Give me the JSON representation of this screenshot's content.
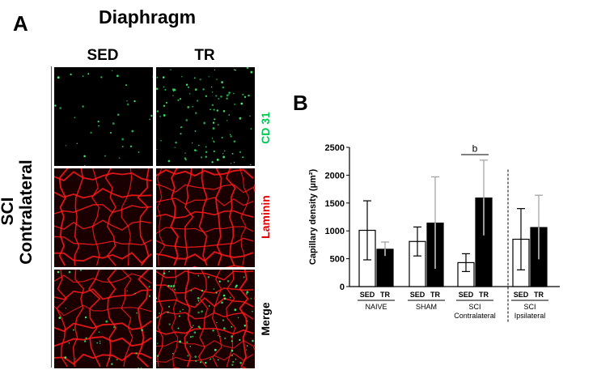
{
  "panel_a": {
    "letter": "A",
    "title": "Diaphragm",
    "columns": [
      "SED",
      "TR"
    ],
    "group_label_line1": "SCI",
    "group_label_line2": "Contralateral",
    "rows": [
      {
        "label": "CD 31",
        "color": "#00c853"
      },
      {
        "label": "Laminin",
        "color": "#e00000"
      },
      {
        "label": "Merge",
        "color": "#000000"
      }
    ]
  },
  "panel_b": {
    "letter": "B"
  },
  "chart_data": {
    "type": "bar",
    "ylabel": "Capillary density (µm²)",
    "ylim": [
      0,
      2500
    ],
    "yticks": [
      0,
      500,
      1000,
      1500,
      2000,
      2500
    ],
    "bar_labels": [
      "SED",
      "TR",
      "SED",
      "TR",
      "SED",
      "TR",
      "SED",
      "TR"
    ],
    "groups": [
      {
        "name": "NAIVE",
        "name_line2": ""
      },
      {
        "name": "SHAM",
        "name_line2": ""
      },
      {
        "name": "SCI",
        "name_line2": "Contralateral"
      },
      {
        "name": "SCI",
        "name_line2": "Ipsilateral"
      }
    ],
    "series": [
      {
        "name": "SED",
        "fill": "#ffffff",
        "values": [
          1010,
          810,
          430,
          850
        ],
        "errors": [
          530,
          260,
          160,
          550
        ]
      },
      {
        "name": "TR",
        "fill": "#000000",
        "values": [
          670,
          1140,
          1590,
          1060
        ],
        "errors": [
          130,
          830,
          680,
          580
        ]
      }
    ],
    "annotation": {
      "text": "b",
      "group_index": 2
    }
  }
}
